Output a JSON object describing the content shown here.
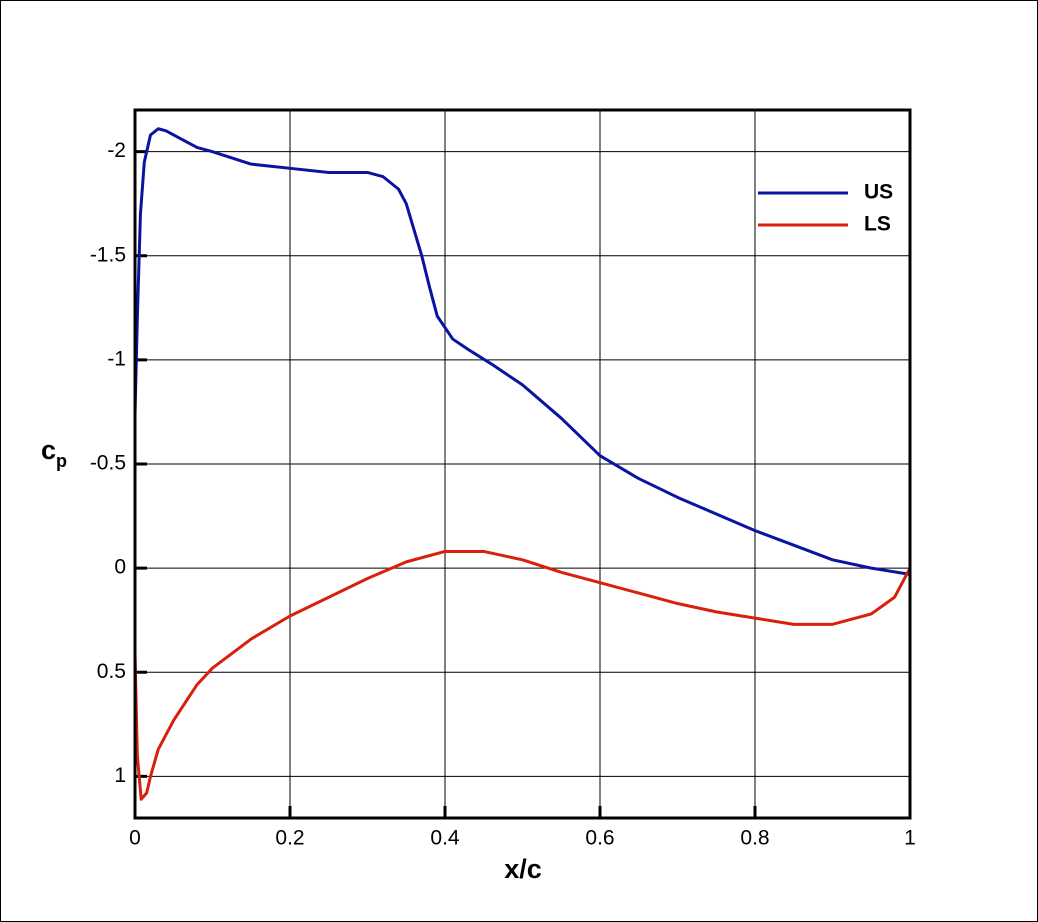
{
  "chart_data": {
    "type": "line",
    "xlabel": "x/c",
    "ylabel": {
      "base": "c",
      "subscript": "p"
    },
    "xlim": [
      0,
      1
    ],
    "xticks": [
      0,
      0.2,
      0.4,
      0.6,
      0.8,
      1
    ],
    "ylim": [
      -2.2,
      1.2
    ],
    "yticks": [
      -2,
      -1.5,
      -1,
      -0.5,
      0,
      0.5,
      1
    ],
    "y_inverted": true,
    "grid": true,
    "legend": "upper right",
    "series": [
      {
        "name": "US",
        "color": "#0a14a0",
        "x": [
          0,
          0.003,
          0.007,
          0.012,
          0.02,
          0.03,
          0.04,
          0.06,
          0.08,
          0.1,
          0.15,
          0.2,
          0.25,
          0.3,
          0.32,
          0.34,
          0.35,
          0.37,
          0.38,
          0.39,
          0.41,
          0.43,
          0.46,
          0.5,
          0.55,
          0.6,
          0.65,
          0.7,
          0.75,
          0.8,
          0.85,
          0.9,
          0.95,
          1
        ],
        "values": [
          -0.74,
          -1.2,
          -1.7,
          -1.95,
          -2.08,
          -2.11,
          -2.1,
          -2.06,
          -2.02,
          -2.0,
          -1.94,
          -1.92,
          -1.9,
          -1.9,
          -1.88,
          -1.82,
          -1.75,
          -1.5,
          -1.35,
          -1.21,
          -1.1,
          -1.05,
          -0.98,
          -0.88,
          -0.72,
          -0.54,
          -0.43,
          -0.34,
          -0.26,
          -0.18,
          -0.11,
          -0.04,
          0.0,
          0.03
        ]
      },
      {
        "name": "LS",
        "color": "#d8200c",
        "x": [
          0,
          0.003,
          0.008,
          0.015,
          0.02,
          0.03,
          0.05,
          0.08,
          0.1,
          0.15,
          0.2,
          0.25,
          0.3,
          0.35,
          0.4,
          0.45,
          0.5,
          0.55,
          0.6,
          0.65,
          0.7,
          0.75,
          0.8,
          0.85,
          0.9,
          0.95,
          0.98,
          1,
          1
        ],
        "values": [
          0.41,
          0.9,
          1.11,
          1.08,
          1.0,
          0.87,
          0.73,
          0.56,
          0.48,
          0.34,
          0.23,
          0.14,
          0.05,
          -0.03,
          -0.08,
          -0.08,
          -0.04,
          0.02,
          0.07,
          0.12,
          0.17,
          0.21,
          0.24,
          0.27,
          0.27,
          0.22,
          0.14,
          0.0,
          -0.07
        ]
      }
    ]
  }
}
